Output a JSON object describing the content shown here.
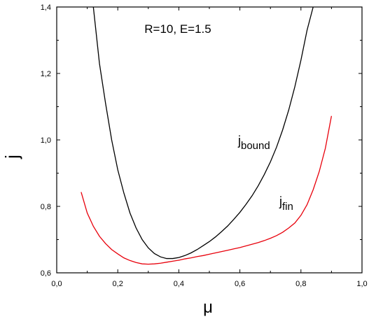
{
  "chart_data": {
    "type": "line",
    "title": "R=10, E=1.5",
    "xlabel": "μ",
    "ylabel": "j",
    "xlim": [
      0.0,
      1.0
    ],
    "ylim": [
      0.6,
      1.4
    ],
    "grid": false,
    "legend": "none",
    "x_major_ticks": [
      "0,0",
      "0,2",
      "0,4",
      "0,6",
      "0,8",
      "1,0"
    ],
    "y_major_ticks": [
      "0,6",
      "0,8",
      "1,0",
      "1,2",
      "1,4"
    ],
    "series": [
      {
        "name": "j_bound",
        "label_main": "j",
        "label_sub": "bound",
        "color": "#000000",
        "x": [
          0.12,
          0.14,
          0.16,
          0.18,
          0.2,
          0.22,
          0.24,
          0.26,
          0.28,
          0.3,
          0.32,
          0.34,
          0.36,
          0.38,
          0.4,
          0.42,
          0.44,
          0.46,
          0.48,
          0.5,
          0.52,
          0.54,
          0.56,
          0.58,
          0.6,
          0.62,
          0.64,
          0.66,
          0.68,
          0.7,
          0.72,
          0.74,
          0.76,
          0.78,
          0.8,
          0.82,
          0.84
        ],
        "y": [
          1.4,
          1.23,
          1.11,
          1.0,
          0.91,
          0.84,
          0.78,
          0.735,
          0.7,
          0.675,
          0.658,
          0.648,
          0.643,
          0.643,
          0.646,
          0.652,
          0.66,
          0.67,
          0.682,
          0.694,
          0.708,
          0.724,
          0.741,
          0.761,
          0.782,
          0.806,
          0.832,
          0.862,
          0.896,
          0.934,
          0.978,
          1.03,
          1.09,
          1.16,
          1.24,
          1.33,
          1.4
        ]
      },
      {
        "name": "j_fin",
        "label_main": "j",
        "label_sub": "fin",
        "color": "#e8000b",
        "x": [
          0.08,
          0.1,
          0.12,
          0.14,
          0.16,
          0.18,
          0.2,
          0.22,
          0.24,
          0.26,
          0.28,
          0.3,
          0.32,
          0.34,
          0.36,
          0.38,
          0.4,
          0.42,
          0.44,
          0.46,
          0.48,
          0.5,
          0.52,
          0.54,
          0.56,
          0.58,
          0.6,
          0.62,
          0.64,
          0.66,
          0.68,
          0.7,
          0.72,
          0.74,
          0.76,
          0.78,
          0.8,
          0.82,
          0.84,
          0.86,
          0.88,
          0.9
        ],
        "y": [
          0.843,
          0.78,
          0.74,
          0.71,
          0.688,
          0.67,
          0.657,
          0.645,
          0.637,
          0.631,
          0.627,
          0.626,
          0.627,
          0.629,
          0.632,
          0.635,
          0.638,
          0.642,
          0.645,
          0.649,
          0.652,
          0.656,
          0.66,
          0.664,
          0.668,
          0.672,
          0.676,
          0.681,
          0.686,
          0.691,
          0.697,
          0.704,
          0.712,
          0.722,
          0.735,
          0.75,
          0.773,
          0.805,
          0.85,
          0.905,
          0.975,
          1.072
        ]
      }
    ]
  }
}
